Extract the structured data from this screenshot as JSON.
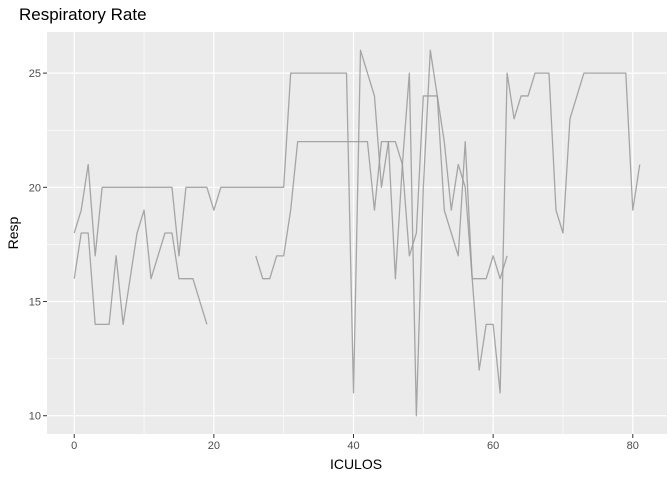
{
  "chart_data": {
    "type": "line",
    "title": "Respiratory Rate",
    "xlabel": "ICULOS",
    "ylabel": "Resp",
    "xlim": [
      -3.9,
      84.9
    ],
    "ylim": [
      9.2,
      26.8
    ],
    "xticks": [
      0,
      20,
      40,
      60,
      80
    ],
    "yticks": [
      10,
      15,
      20,
      25
    ],
    "grid": true,
    "legend": "none",
    "colors": {
      "panel": "#EBEBEB",
      "grid_major": "#FFFFFF",
      "line": "#999999"
    },
    "series": [
      {
        "x": [
          0,
          1,
          2,
          3,
          4,
          5,
          6,
          7,
          8,
          9,
          10,
          11,
          12,
          13,
          14,
          15,
          16,
          17,
          18,
          19
        ],
        "y": [
          16,
          18,
          18,
          14,
          14,
          14,
          17,
          14,
          16,
          18,
          19,
          16,
          17,
          18,
          18,
          16,
          16,
          16,
          15,
          14
        ]
      },
      {
        "x": [
          0,
          1,
          2,
          3,
          4,
          5,
          6,
          7,
          8,
          9,
          10,
          11,
          12,
          13,
          14,
          15,
          16,
          17,
          18,
          19,
          20,
          21,
          22,
          23,
          24,
          25,
          26,
          27,
          28,
          29,
          30,
          31,
          32,
          33,
          34,
          35,
          36,
          37,
          38,
          39,
          40,
          41,
          42,
          43,
          44,
          45,
          46,
          47,
          48,
          49,
          50,
          51,
          52,
          53,
          54,
          55,
          56,
          57,
          58,
          59,
          60,
          61,
          62
        ],
        "y": [
          18,
          19,
          21,
          17,
          20,
          20,
          20,
          20,
          20,
          20,
          20,
          20,
          20,
          20,
          20,
          17,
          20,
          20,
          20,
          20,
          19,
          20,
          20,
          20,
          20,
          20,
          20,
          20,
          20,
          20,
          20,
          25,
          25,
          25,
          25,
          25,
          25,
          25,
          25,
          25,
          11,
          26,
          25,
          24,
          20,
          22,
          22,
          21,
          17,
          18,
          24,
          24,
          24,
          19,
          18,
          17,
          22,
          16,
          16,
          16,
          17,
          16,
          17
        ]
      },
      {
        "x": [
          26,
          27,
          28,
          29,
          30,
          31,
          32,
          33,
          34,
          35,
          36,
          37,
          38,
          39,
          40,
          41,
          42,
          43,
          44,
          45,
          46,
          47,
          48,
          49,
          50,
          51,
          52,
          53,
          54,
          55,
          56,
          57,
          58,
          59,
          60,
          61,
          62,
          63,
          64,
          65,
          66,
          67,
          68,
          69,
          70,
          71,
          72,
          73,
          74,
          75,
          76,
          77,
          78,
          79,
          80,
          81
        ],
        "y": [
          17,
          16,
          16,
          17,
          17,
          19,
          22,
          22,
          22,
          22,
          22,
          22,
          22,
          22,
          22,
          22,
          22,
          19,
          22,
          22,
          16,
          21,
          25,
          10,
          20,
          26,
          24,
          22,
          19,
          21,
          20,
          16,
          12,
          14,
          14,
          11,
          25,
          23,
          24,
          24,
          25,
          25,
          25,
          19,
          18,
          23,
          24,
          25,
          25,
          25,
          25,
          25,
          25,
          25,
          19,
          21
        ]
      }
    ]
  }
}
